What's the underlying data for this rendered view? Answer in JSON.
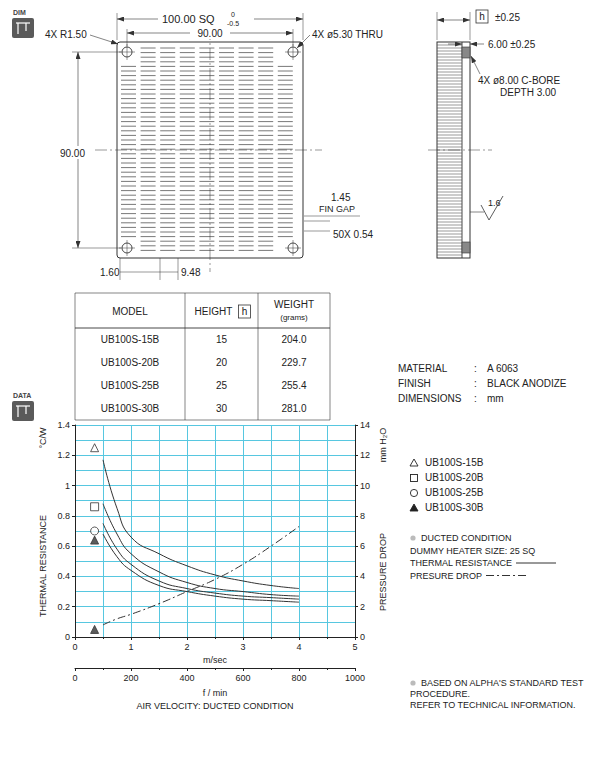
{
  "icons": {
    "dim": "DIM",
    "data": "DATA"
  },
  "drawing": {
    "front": {
      "overall": {
        "text": "100.00 SQ",
        "upper": "0",
        "lower": "-0.5"
      },
      "hole_pitch_x": "90.00",
      "hole_pitch_y": "90.00",
      "corner": "4X R1.50",
      "holes": "4X ø5.30 THRU",
      "fin_gap": {
        "value": "1.45",
        "label": "FIN GAP"
      },
      "fins": "50X 0.54",
      "edge": "1.60",
      "pitch": "9.48"
    },
    "side": {
      "height": {
        "box": "h",
        "tol": "±0.25"
      },
      "base": "6.00 ±0.25",
      "cbore": [
        "4X ø8.00 C-BORE",
        "DEPTH 3.00"
      ],
      "finish": "1.6"
    }
  },
  "table": {
    "header": [
      {
        "lines": [
          "MODEL"
        ]
      },
      {
        "lines": [
          "HEIGHT"
        ],
        "box": "h"
      },
      {
        "lines": [
          "WEIGHT",
          "(grams)"
        ]
      }
    ],
    "rows": [
      [
        "UB100S-15B",
        "15",
        "204.0"
      ],
      [
        "UB100S-20B",
        "20",
        "229.7"
      ],
      [
        "UB100S-25B",
        "25",
        "255.4"
      ],
      [
        "UB100S-30B",
        "30",
        "281.0"
      ]
    ]
  },
  "specs": [
    [
      "MATERIAL",
      "A 6063"
    ],
    [
      "FINISH",
      "BLACK ANODIZE"
    ],
    [
      "DIMENSIONS",
      "mm"
    ]
  ],
  "chart_data": {
    "type": "line",
    "xlabel": "m/sec",
    "xlim": [
      0,
      5
    ],
    "xticks": [
      0,
      1,
      2,
      3,
      4,
      5
    ],
    "x2label": "f / min",
    "x2lim": [
      0,
      1000
    ],
    "x2ticks": [
      0,
      200,
      400,
      600,
      800,
      1000
    ],
    "ylabel": "THERMAL RESISTANCE",
    "yunit": "°C/W",
    "ylim": [
      0,
      1.4
    ],
    "yticks": [
      0,
      0.2,
      0.4,
      0.6,
      0.8,
      1,
      1.2,
      1.4
    ],
    "y2label": "PRESSURE DROP",
    "y2unit": "mm H₂O",
    "y2lim": [
      0,
      14
    ],
    "y2ticks": [
      0,
      2,
      4,
      6,
      8,
      10,
      12,
      14
    ],
    "grid": true,
    "x": [
      0.5,
      0.75,
      1,
      1.5,
      2,
      2.5,
      3,
      3.5,
      4
    ],
    "series": [
      {
        "name": "UB100S-15B",
        "color": "#333333",
        "marker": "open_triangle",
        "line_style": "solid",
        "marker_point": [
          0.35,
          1.25
        ],
        "values": [
          1.17,
          0.85,
          0.66,
          0.55,
          0.47,
          0.41,
          0.37,
          0.34,
          0.32
        ]
      },
      {
        "name": "UB100S-20B",
        "color": "#333333",
        "marker": "open_square",
        "line_style": "solid",
        "marker_point": [
          0.35,
          0.86
        ],
        "values": [
          0.88,
          0.68,
          0.55,
          0.43,
          0.36,
          0.32,
          0.3,
          0.28,
          0.27
        ]
      },
      {
        "name": "UB100S-25B",
        "color": "#333333",
        "marker": "open_circle",
        "line_style": "solid",
        "marker_point": [
          0.35,
          0.7
        ],
        "values": [
          0.75,
          0.58,
          0.48,
          0.37,
          0.32,
          0.29,
          0.27,
          0.26,
          0.25
        ]
      },
      {
        "name": "UB100S-30B",
        "color": "#333333",
        "marker": "filled_triangle",
        "line_style": "solid",
        "marker_point": [
          0.35,
          0.64
        ],
        "values": [
          0.68,
          0.53,
          0.44,
          0.34,
          0.3,
          0.27,
          0.25,
          0.24,
          0.23
        ]
      },
      {
        "name": "PRESURE DROP",
        "color": "#333333",
        "marker": "filled_triangle",
        "line_style": "dashdot",
        "axis": "y2",
        "marker_point": [
          0.35,
          0.5
        ],
        "values": [
          0.8,
          1.2,
          1.5,
          2.2,
          3.0,
          3.8,
          4.8,
          6.0,
          7.3
        ]
      }
    ],
    "notes": [
      "DUCTED CONDITION",
      "DUMMY HEATER SIZE: 25 SQ"
    ],
    "line_key": [
      {
        "label": "THERMAL RESISTANCE",
        "line_style": "solid"
      },
      {
        "label": "PRESURE DROP",
        "line_style": "dashdot"
      }
    ],
    "footnote": [
      "BASED ON ALPHA'S STANDARD TEST",
      "PROCEDURE.",
      "REFER TO TECHNICAL INFORMATION."
    ],
    "caption": "AIR VELOCITY: DUCTED CONDITION"
  }
}
